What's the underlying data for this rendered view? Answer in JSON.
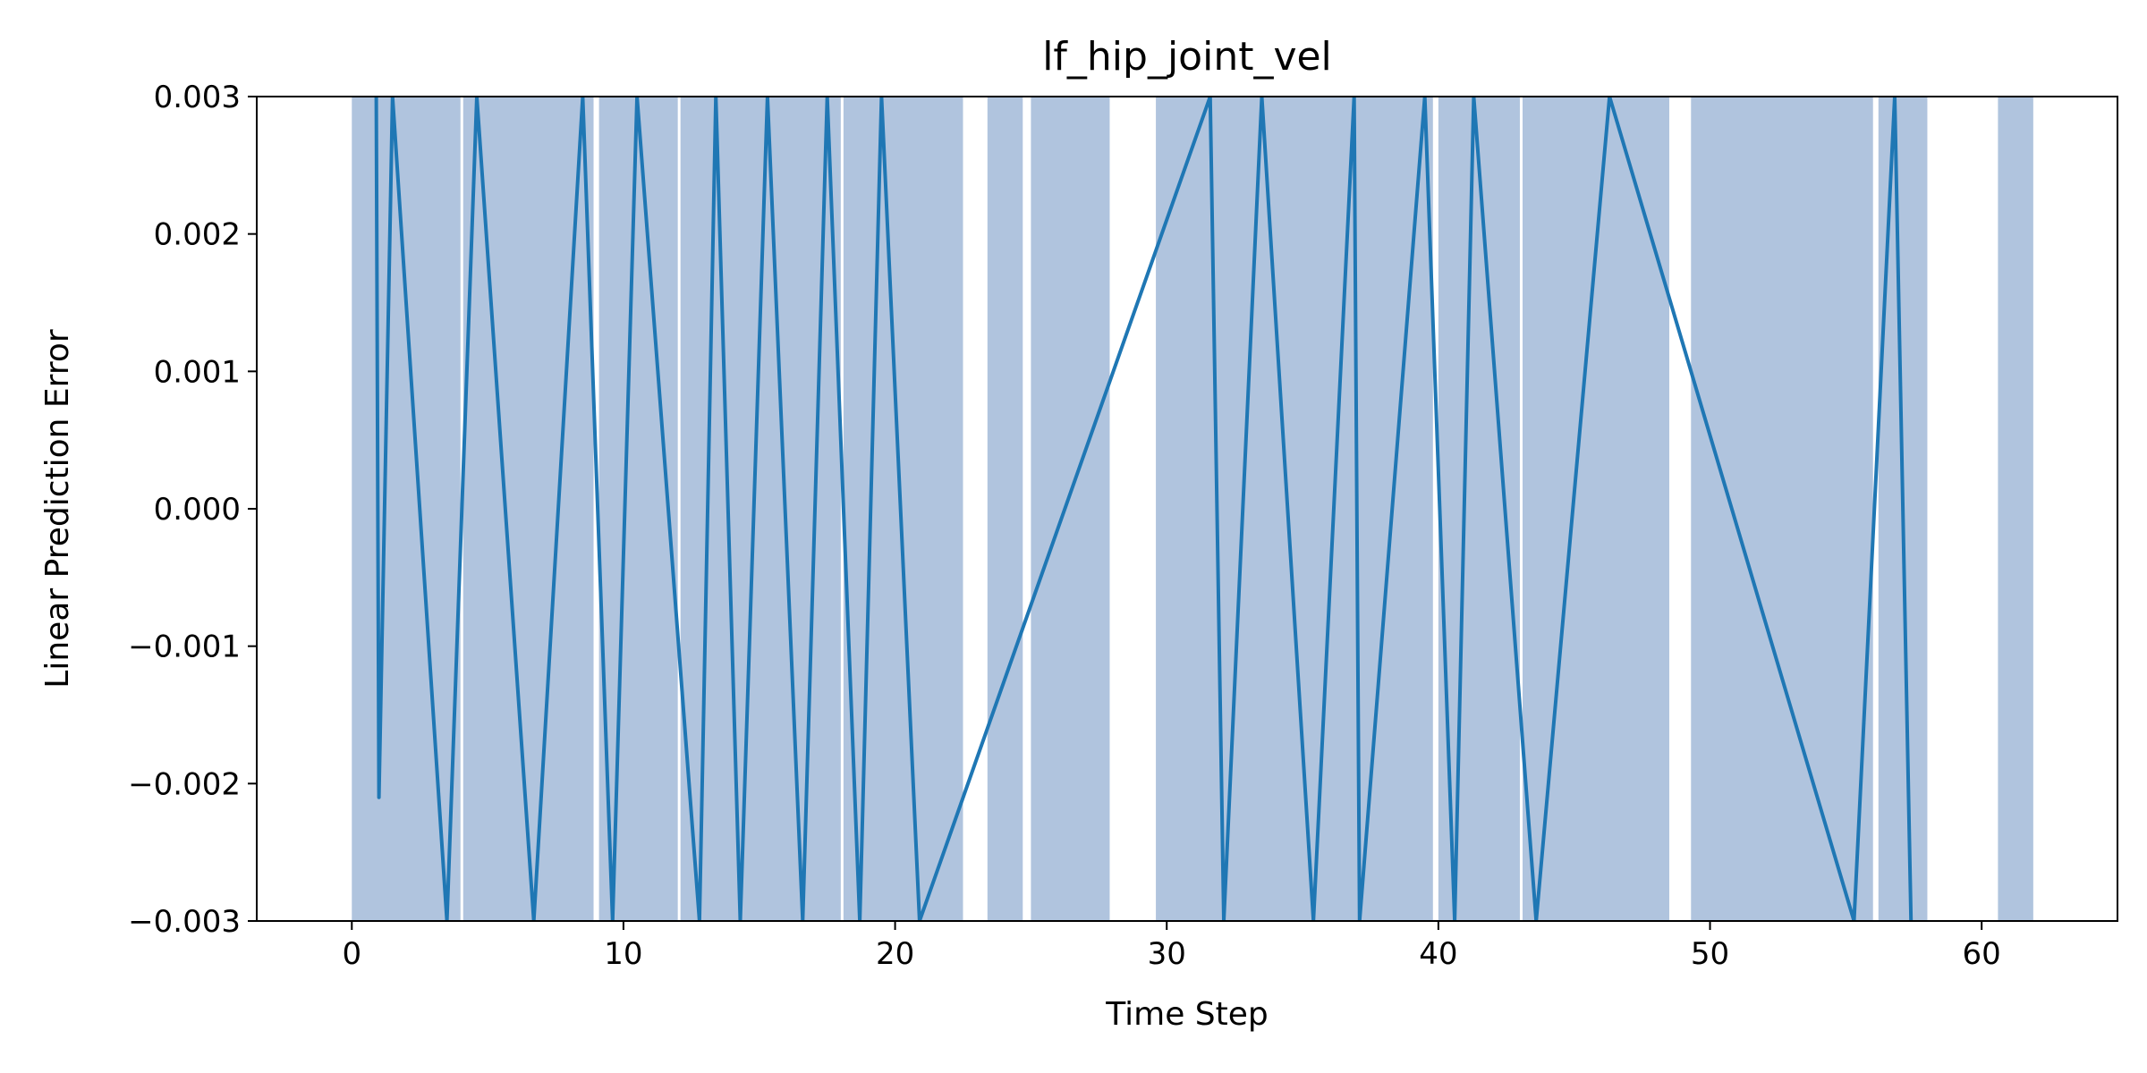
{
  "chart_data": {
    "type": "line",
    "title": "lf_hip_joint_vel",
    "xlabel": "Time Step",
    "ylabel": "Linear Prediction Error",
    "xlim": [
      -3.5,
      65
    ],
    "ylim": [
      -0.003,
      0.003
    ],
    "xticks": [
      0,
      10,
      20,
      30,
      40,
      50,
      60
    ],
    "xtick_labels": [
      "0",
      "10",
      "20",
      "30",
      "40",
      "50",
      "60"
    ],
    "yticks": [
      -0.003,
      -0.002,
      -0.001,
      0.0,
      0.001,
      0.002,
      0.003
    ],
    "ytick_labels": [
      "−0.003",
      "−0.002",
      "−0.001",
      "0.000",
      "0.001",
      "0.002",
      "0.003"
    ],
    "grid": false,
    "colors": {
      "line": "#1f77b4",
      "band": "#b0c4de"
    },
    "band_intervals": [
      [
        0,
        4
      ],
      [
        4.1,
        8.9
      ],
      [
        9.1,
        12
      ],
      [
        12.1,
        18
      ],
      [
        18.1,
        22.5
      ],
      [
        23.4,
        24.7
      ],
      [
        25,
        27.9
      ],
      [
        29.6,
        39.8
      ],
      [
        40,
        43
      ],
      [
        43.1,
        48.5
      ],
      [
        49.3,
        56
      ],
      [
        56.2,
        58
      ],
      [
        60.6,
        61.9
      ]
    ],
    "series": [
      {
        "x": [
          0.9,
          1.0,
          1.5,
          3.5,
          4.6,
          6.7,
          8.5,
          9.6,
          10.5,
          12.8,
          13.4,
          14.3,
          15.3,
          16.6,
          17.5,
          18.7,
          19.5,
          20.9,
          31.6,
          32.1,
          33.5,
          35.4,
          36.9,
          37.1,
          39.5,
          40.6,
          41.3,
          43.6,
          46.3,
          55.3,
          56.8,
          57.4
        ],
        "y": [
          0.003,
          -0.0021,
          0.003,
          -0.003,
          0.003,
          -0.003,
          0.003,
          -0.003,
          0.003,
          -0.003,
          0.003,
          -0.003,
          0.003,
          -0.003,
          0.003,
          -0.003,
          0.003,
          -0.003,
          0.003,
          -0.003,
          0.003,
          -0.003,
          0.003,
          -0.003,
          0.003,
          -0.003,
          0.003,
          -0.003,
          0.003,
          -0.003,
          0.003,
          -0.003
        ]
      }
    ]
  }
}
